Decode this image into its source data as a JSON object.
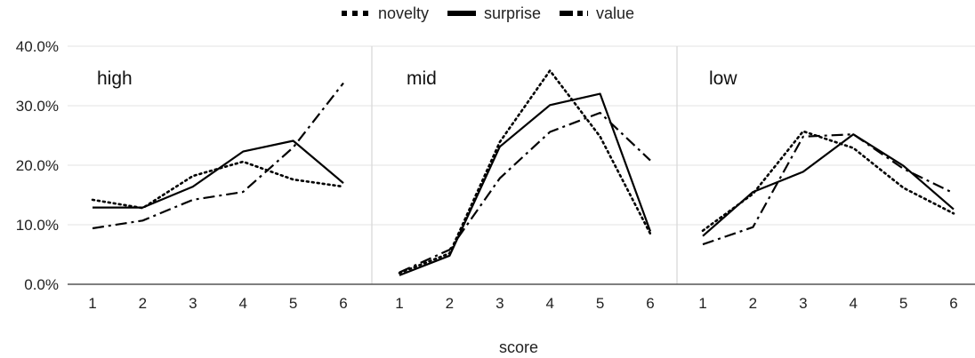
{
  "chart_data": {
    "type": "line",
    "xlabel": "score",
    "ylabel": "",
    "ylim": [
      0,
      40
    ],
    "y_ticks": [
      "0.0%",
      "10.0%",
      "20.0%",
      "30.0%",
      "40.0%"
    ],
    "categories": [
      "1",
      "2",
      "3",
      "4",
      "5",
      "6"
    ],
    "grid": "horizontal",
    "legend_position": "top-center",
    "series_styles": [
      {
        "name": "novelty",
        "dash": "dotted",
        "color": "#000000"
      },
      {
        "name": "surprise",
        "dash": "solid",
        "color": "#000000"
      },
      {
        "name": "value",
        "dash": "dash-dot",
        "color": "#000000"
      }
    ],
    "panels": [
      {
        "label": "high",
        "series": [
          {
            "name": "novelty",
            "values": [
              14.2,
              12.8,
              18.2,
              20.6,
              17.6,
              16.4
            ]
          },
          {
            "name": "surprise",
            "values": [
              12.9,
              12.9,
              16.4,
              22.3,
              24.1,
              17.0
            ]
          },
          {
            "name": "value",
            "values": [
              9.4,
              10.7,
              14.2,
              15.5,
              23.0,
              33.8
            ]
          }
        ]
      },
      {
        "label": "mid",
        "series": [
          {
            "name": "novelty",
            "values": [
              1.9,
              5.2,
              23.9,
              35.9,
              24.8,
              8.5
            ]
          },
          {
            "name": "surprise",
            "values": [
              1.5,
              4.8,
              23.1,
              30.1,
              32.0,
              8.9
            ]
          },
          {
            "name": "value",
            "values": [
              2.0,
              5.8,
              17.8,
              25.6,
              28.8,
              20.8
            ]
          }
        ]
      },
      {
        "label": "low",
        "series": [
          {
            "name": "novelty",
            "values": [
              9.0,
              15.2,
              25.7,
              22.9,
              16.2,
              11.9
            ]
          },
          {
            "name": "surprise",
            "values": [
              8.1,
              15.5,
              18.9,
              25.2,
              19.9,
              12.6
            ]
          },
          {
            "name": "value",
            "values": [
              6.7,
              9.6,
              24.8,
              25.2,
              19.4,
              15.3
            ]
          }
        ]
      }
    ]
  }
}
